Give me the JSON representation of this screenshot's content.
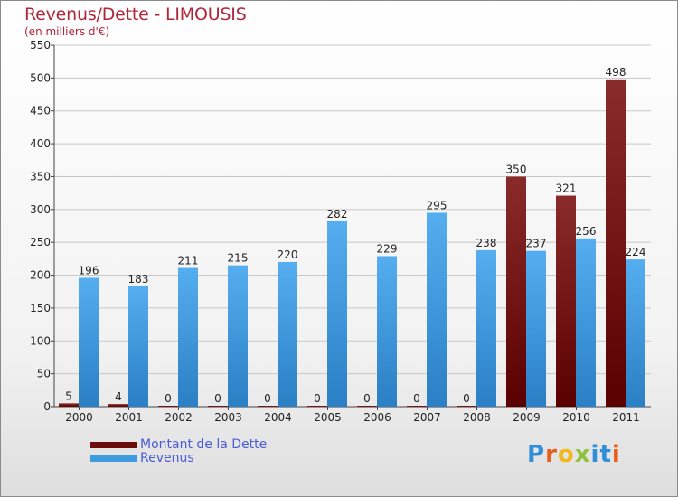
{
  "title": "Revenus/Dette - LIMOUSIS",
  "subtitle": "(en milliers d'€)",
  "logo": {
    "text": "Proxiti"
  },
  "chart_data": {
    "type": "bar",
    "title": "Revenus/Dette - LIMOUSIS",
    "ylabel": "(en milliers d'€)",
    "categories": [
      "2000",
      "2001",
      "2002",
      "2003",
      "2004",
      "2005",
      "2006",
      "2007",
      "2008",
      "2009",
      "2010",
      "2011"
    ],
    "yticks": [
      0,
      50,
      100,
      150,
      200,
      250,
      300,
      350,
      400,
      450,
      500,
      550
    ],
    "ylim": [
      0,
      550
    ],
    "legend_position": "bottom-left",
    "series": [
      {
        "name": "Montant de la Dette",
        "color": "#6b0d0d",
        "values": [
          5,
          4,
          0,
          0,
          0,
          0,
          0,
          0,
          0,
          350,
          321,
          498
        ]
      },
      {
        "name": "Revenus",
        "color": "#3f9be0",
        "values": [
          196,
          183,
          211,
          215,
          220,
          282,
          229,
          295,
          238,
          237,
          256,
          224
        ]
      }
    ]
  }
}
